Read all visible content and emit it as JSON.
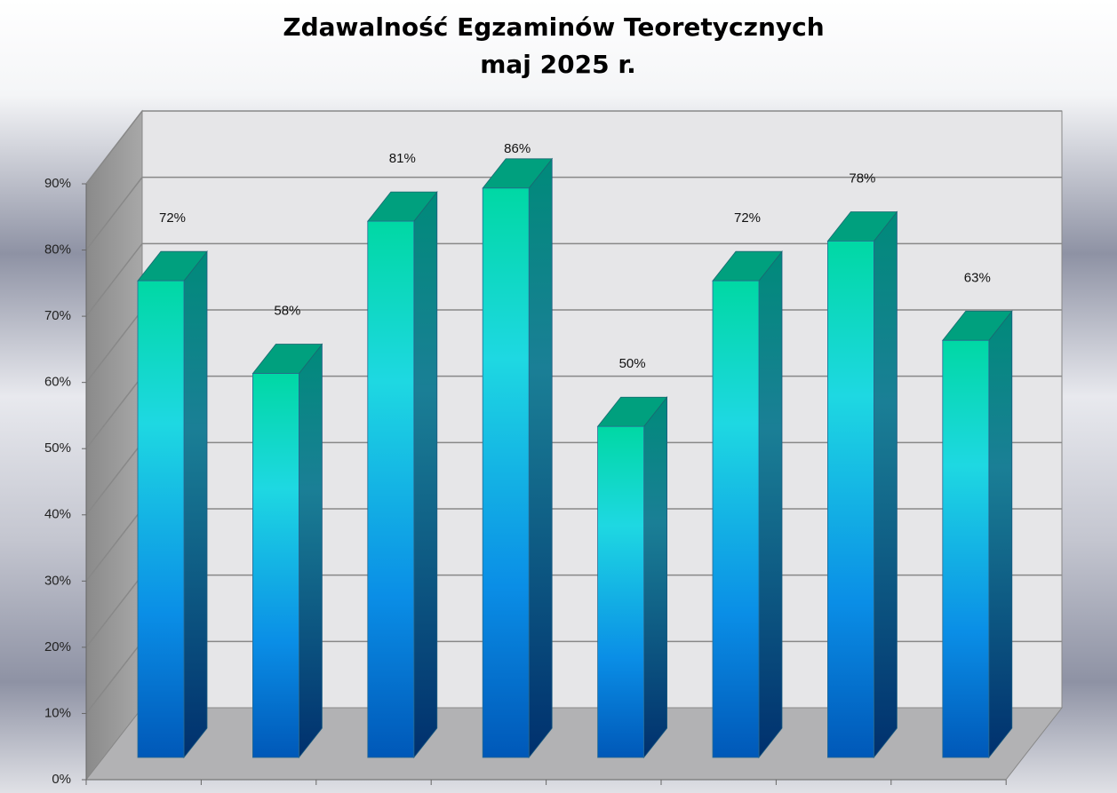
{
  "chart_data": {
    "type": "bar3d",
    "title": "Zdawalność Egzaminów Teoretycznych",
    "subtitle": "maj 2025 r.",
    "categories": [
      null,
      null,
      null,
      null,
      null,
      null,
      null,
      null
    ],
    "values": [
      72,
      58,
      81,
      86,
      50,
      72,
      78,
      63
    ],
    "value_labels": [
      "72%",
      "58%",
      "81%",
      "86%",
      "50%",
      "72%",
      "78%",
      "63%"
    ],
    "ylim": [
      0,
      90
    ],
    "yticks": [
      {
        "value": 0,
        "label": "0%"
      },
      {
        "value": 10,
        "label": "10%"
      },
      {
        "value": 20,
        "label": "20%"
      },
      {
        "value": 30,
        "label": "30%"
      },
      {
        "value": 40,
        "label": "40%"
      },
      {
        "value": 50,
        "label": "50%"
      },
      {
        "value": 60,
        "label": "60%"
      },
      {
        "value": 70,
        "label": "70%"
      },
      {
        "value": 80,
        "label": "80%"
      },
      {
        "value": 90,
        "label": "90%"
      }
    ],
    "grid": true
  }
}
